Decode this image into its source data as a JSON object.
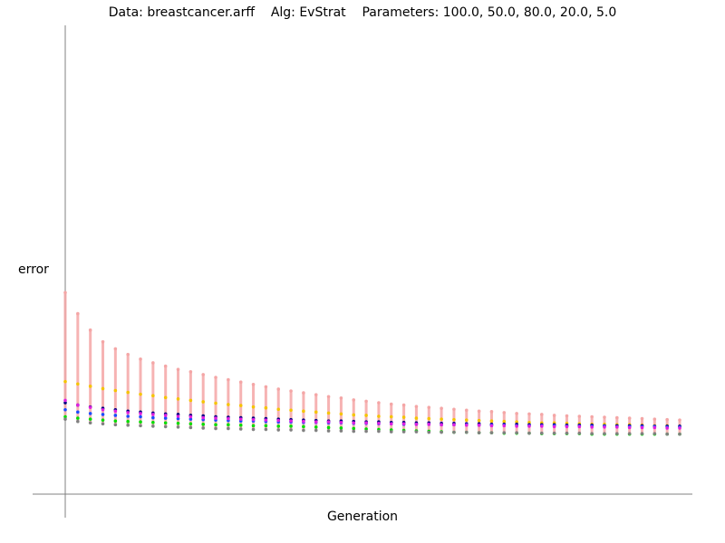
{
  "chart_data": {
    "type": "scatter",
    "title": "Data: breastcancer.arff    Alg: EvStrat    Parameters: 100.0, 50.0, 80.0, 20.0, 5.0",
    "xlabel": "Generation",
    "ylabel": "error",
    "xlim": [
      0,
      50
    ],
    "ylim": [
      0,
      1
    ],
    "grid": false,
    "x": [
      0,
      1,
      2,
      3,
      4,
      5,
      6,
      7,
      8,
      9,
      10,
      11,
      12,
      13,
      14,
      15,
      16,
      17,
      18,
      19,
      20,
      21,
      22,
      23,
      24,
      25,
      26,
      27,
      28,
      29,
      30,
      31,
      32,
      33,
      34,
      35,
      36,
      37,
      38,
      39,
      40,
      41,
      42,
      43,
      44,
      45,
      46,
      47,
      48,
      49
    ],
    "series": [
      {
        "color": "#f4a6a6",
        "values": [
          0.43,
          0.385,
          0.35,
          0.325,
          0.31,
          0.298,
          0.288,
          0.28,
          0.273,
          0.266,
          0.261,
          0.255,
          0.249,
          0.244,
          0.239,
          0.234,
          0.229,
          0.224,
          0.22,
          0.216,
          0.212,
          0.208,
          0.205,
          0.201,
          0.198,
          0.195,
          0.192,
          0.19,
          0.187,
          0.185,
          0.183,
          0.181,
          0.179,
          0.177,
          0.176,
          0.174,
          0.172,
          0.171,
          0.17,
          0.168,
          0.167,
          0.166,
          0.165,
          0.164,
          0.163,
          0.162,
          0.161,
          0.16,
          0.159,
          0.158
        ]
      },
      {
        "color": "#f5c400",
        "values": [
          0.24,
          0.235,
          0.23,
          0.225,
          0.221,
          0.217,
          0.213,
          0.21,
          0.206,
          0.203,
          0.2,
          0.197,
          0.194,
          0.191,
          0.189,
          0.186,
          0.184,
          0.181,
          0.179,
          0.177,
          0.175,
          0.173,
          0.171,
          0.169,
          0.168,
          0.166,
          0.165,
          0.164,
          0.162,
          0.161,
          0.16,
          0.159,
          0.158,
          0.157,
          0.156,
          0.155,
          0.154,
          0.153,
          0.152,
          0.152,
          0.151,
          0.15,
          0.149,
          0.149,
          0.148,
          0.148,
          0.147,
          0.146,
          0.146,
          0.145
        ]
      },
      {
        "color": "#000080",
        "values": [
          0.195,
          0.19,
          0.186,
          0.183,
          0.18,
          0.177,
          0.175,
          0.173,
          0.171,
          0.17,
          0.168,
          0.167,
          0.165,
          0.164,
          0.163,
          0.162,
          0.161,
          0.16,
          0.159,
          0.158,
          0.157,
          0.156,
          0.156,
          0.155,
          0.154,
          0.154,
          0.153,
          0.153,
          0.152,
          0.152,
          0.151,
          0.151,
          0.15,
          0.15,
          0.149,
          0.149,
          0.149,
          0.148,
          0.148,
          0.148,
          0.147,
          0.147,
          0.147,
          0.146,
          0.146,
          0.146,
          0.146,
          0.145,
          0.145,
          0.145
        ]
      },
      {
        "color": "#1a4cff",
        "values": [
          0.18,
          0.175,
          0.172,
          0.17,
          0.168,
          0.166,
          0.165,
          0.163,
          0.162,
          0.161,
          0.16,
          0.159,
          0.158,
          0.157,
          0.156,
          0.156,
          0.155,
          0.154,
          0.154,
          0.153,
          0.153,
          0.152,
          0.152,
          0.151,
          0.151,
          0.15,
          0.15,
          0.149,
          0.149,
          0.149,
          0.148,
          0.148,
          0.148,
          0.147,
          0.147,
          0.147,
          0.146,
          0.146,
          0.146,
          0.146,
          0.145,
          0.145,
          0.145,
          0.145,
          0.144,
          0.144,
          0.144,
          0.144,
          0.143,
          0.143
        ]
      },
      {
        "color": "#e020e0",
        "values": [
          0.2,
          0.19,
          0.185,
          0.18,
          0.177,
          0.174,
          0.172,
          0.17,
          0.168,
          0.166,
          0.165,
          0.163,
          0.162,
          0.161,
          0.16,
          0.159,
          0.158,
          0.157,
          0.156,
          0.155,
          0.154,
          0.154,
          0.153,
          0.152,
          0.152,
          0.151,
          0.15,
          0.15,
          0.149,
          0.149,
          0.148,
          0.148,
          0.147,
          0.147,
          0.146,
          0.146,
          0.145,
          0.145,
          0.145,
          0.144,
          0.144,
          0.144,
          0.143,
          0.143,
          0.143,
          0.142,
          0.142,
          0.142,
          0.141,
          0.141
        ]
      },
      {
        "color": "#00dd00",
        "values": [
          0.165,
          0.162,
          0.16,
          0.158,
          0.156,
          0.155,
          0.154,
          0.153,
          0.152,
          0.151,
          0.15,
          0.149,
          0.148,
          0.148,
          0.147,
          0.146,
          0.146,
          0.145,
          0.145,
          0.144,
          0.143,
          0.142,
          0.141,
          0.14,
          0.139,
          0.138,
          0.137,
          0.136,
          0.135,
          0.134,
          0.133,
          0.132,
          0.132,
          0.131,
          0.131,
          0.13,
          0.13,
          0.13,
          0.129,
          0.129,
          0.129,
          0.129,
          0.128,
          0.128,
          0.128,
          0.128,
          0.128,
          0.128,
          0.128,
          0.128
        ]
      },
      {
        "color": "#808080",
        "values": [
          0.16,
          0.155,
          0.152,
          0.15,
          0.148,
          0.147,
          0.146,
          0.145,
          0.144,
          0.143,
          0.142,
          0.141,
          0.14,
          0.14,
          0.139,
          0.138,
          0.138,
          0.137,
          0.137,
          0.136,
          0.136,
          0.135,
          0.135,
          0.134,
          0.134,
          0.134,
          0.133,
          0.133,
          0.133,
          0.132,
          0.132,
          0.132,
          0.132,
          0.131,
          0.131,
          0.131,
          0.131,
          0.13,
          0.13,
          0.13,
          0.13,
          0.13,
          0.129,
          0.129,
          0.129,
          0.129,
          0.129,
          0.129,
          0.128,
          0.128
        ]
      }
    ]
  }
}
